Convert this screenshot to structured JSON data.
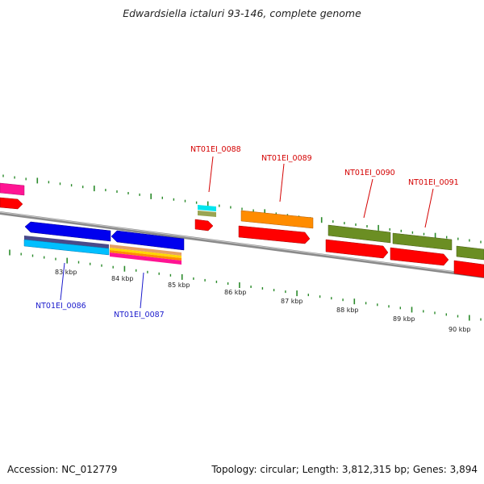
{
  "title": "Edwardsiella ictaluri 93-146, complete genome",
  "accession": "Accession: NC_012779",
  "summary": "Topology: circular; Length: 3,812,315 bp; Genes: 3,894",
  "ruler_labels": [
    "83 kbp",
    "84 kbp",
    "85 kbp",
    "86 kbp",
    "87 kbp",
    "88 kbp",
    "89 kbp",
    "90 kbp"
  ],
  "genes_top": [
    "NT01EI_0088",
    "NT01EI_0089",
    "NT01EI_0090",
    "NT01EI_0091"
  ],
  "genes_bottom": [
    "NT01EI_0086",
    "NT01EI_0087"
  ],
  "colors": {
    "backbone": "#888888",
    "tick": "#2a8a2a",
    "gene_red": "#ff0000",
    "blue": "#0000ee",
    "orange": "#ff8c00",
    "olive": "#6b8e23",
    "magenta": "#ff1493",
    "cyan": "#00e5ee",
    "top_label": "#d40000",
    "bottom_label": "#1a1acc"
  }
}
